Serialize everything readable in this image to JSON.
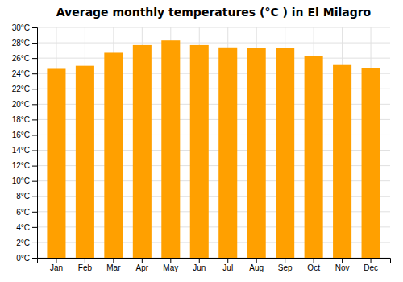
{
  "chart_data": {
    "type": "bar",
    "title": "Average monthly temperatures (°C ) in El Milagro",
    "categories": [
      "Jan",
      "Feb",
      "Mar",
      "Apr",
      "May",
      "Jun",
      "Jul",
      "Aug",
      "Sep",
      "Oct",
      "Nov",
      "Dec"
    ],
    "values": [
      24.6,
      25.0,
      26.7,
      27.7,
      28.3,
      27.7,
      27.4,
      27.3,
      27.3,
      26.3,
      25.1,
      24.7
    ],
    "color": "#FFA000",
    "ylim": [
      0,
      30
    ],
    "yticks": [
      {
        "value": 0,
        "label": "0°C"
      },
      {
        "value": 2,
        "label": "2°C"
      },
      {
        "value": 4,
        "label": "4°C"
      },
      {
        "value": 6,
        "label": "6°C"
      },
      {
        "value": 8,
        "label": "8°C"
      },
      {
        "value": 10,
        "label": "10°C"
      },
      {
        "value": 12,
        "label": "12°C"
      },
      {
        "value": 14,
        "label": "14°C"
      },
      {
        "value": 16,
        "label": "16°C"
      },
      {
        "value": 18,
        "label": "18°C"
      },
      {
        "value": 20,
        "label": "20°C"
      },
      {
        "value": 22,
        "label": "22°C"
      },
      {
        "value": 24,
        "label": "24°C"
      },
      {
        "value": 26,
        "label": "26°C"
      },
      {
        "value": 28,
        "label": "28°C"
      },
      {
        "value": 30,
        "label": "30°C"
      }
    ],
    "grid": true
  }
}
